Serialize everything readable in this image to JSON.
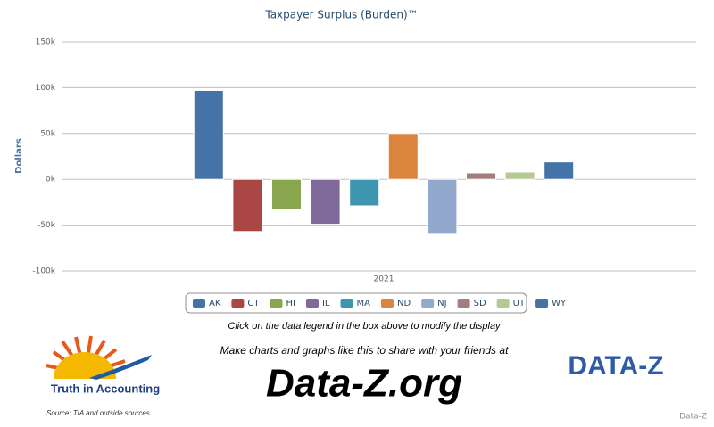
{
  "chart_data": {
    "type": "bar",
    "title": "Taxpayer Surplus (Burden)™",
    "y_label": "Dollars",
    "categories": [
      "2021"
    ],
    "series": [
      {
        "name": "AK",
        "color": "#4572a7",
        "values": [
          97000
        ]
      },
      {
        "name": "CT",
        "color": "#aa4643",
        "values": [
          -57000
        ]
      },
      {
        "name": "HI",
        "color": "#89a54e",
        "values": [
          -33000
        ]
      },
      {
        "name": "IL",
        "color": "#80699b",
        "values": [
          -49000
        ]
      },
      {
        "name": "MA",
        "color": "#3d96ae",
        "values": [
          -29000
        ]
      },
      {
        "name": "ND",
        "color": "#db843d",
        "values": [
          50000
        ]
      },
      {
        "name": "NJ",
        "color": "#92a8cd",
        "values": [
          -59000
        ]
      },
      {
        "name": "SD",
        "color": "#a47d7c",
        "values": [
          7000
        ]
      },
      {
        "name": "UT",
        "color": "#b5ca92",
        "values": [
          8000
        ]
      },
      {
        "name": "WY",
        "color": "#4572a7",
        "values": [
          19000
        ]
      }
    ],
    "ylim": [
      -100000,
      150000
    ],
    "yticks": [
      {
        "value": -100000,
        "label": "-100k"
      },
      {
        "value": -50000,
        "label": "-50k"
      },
      {
        "value": 0,
        "label": "0k"
      },
      {
        "value": 50000,
        "label": "50k"
      },
      {
        "value": 100000,
        "label": "100k"
      },
      {
        "value": 150000,
        "label": "150k"
      }
    ],
    "grid": true,
    "legend": "bottom"
  },
  "footer": {
    "hint": "Click on the data legend in the box above to modify the display",
    "promo": "Make charts and graphs like this to share with your friends at",
    "site": "Data-Z.org",
    "left_logo": "Truth in Accounting",
    "right_logo": "DATA-Z",
    "source": "Source: TIA and outside sources",
    "credit": "Data-Z"
  }
}
